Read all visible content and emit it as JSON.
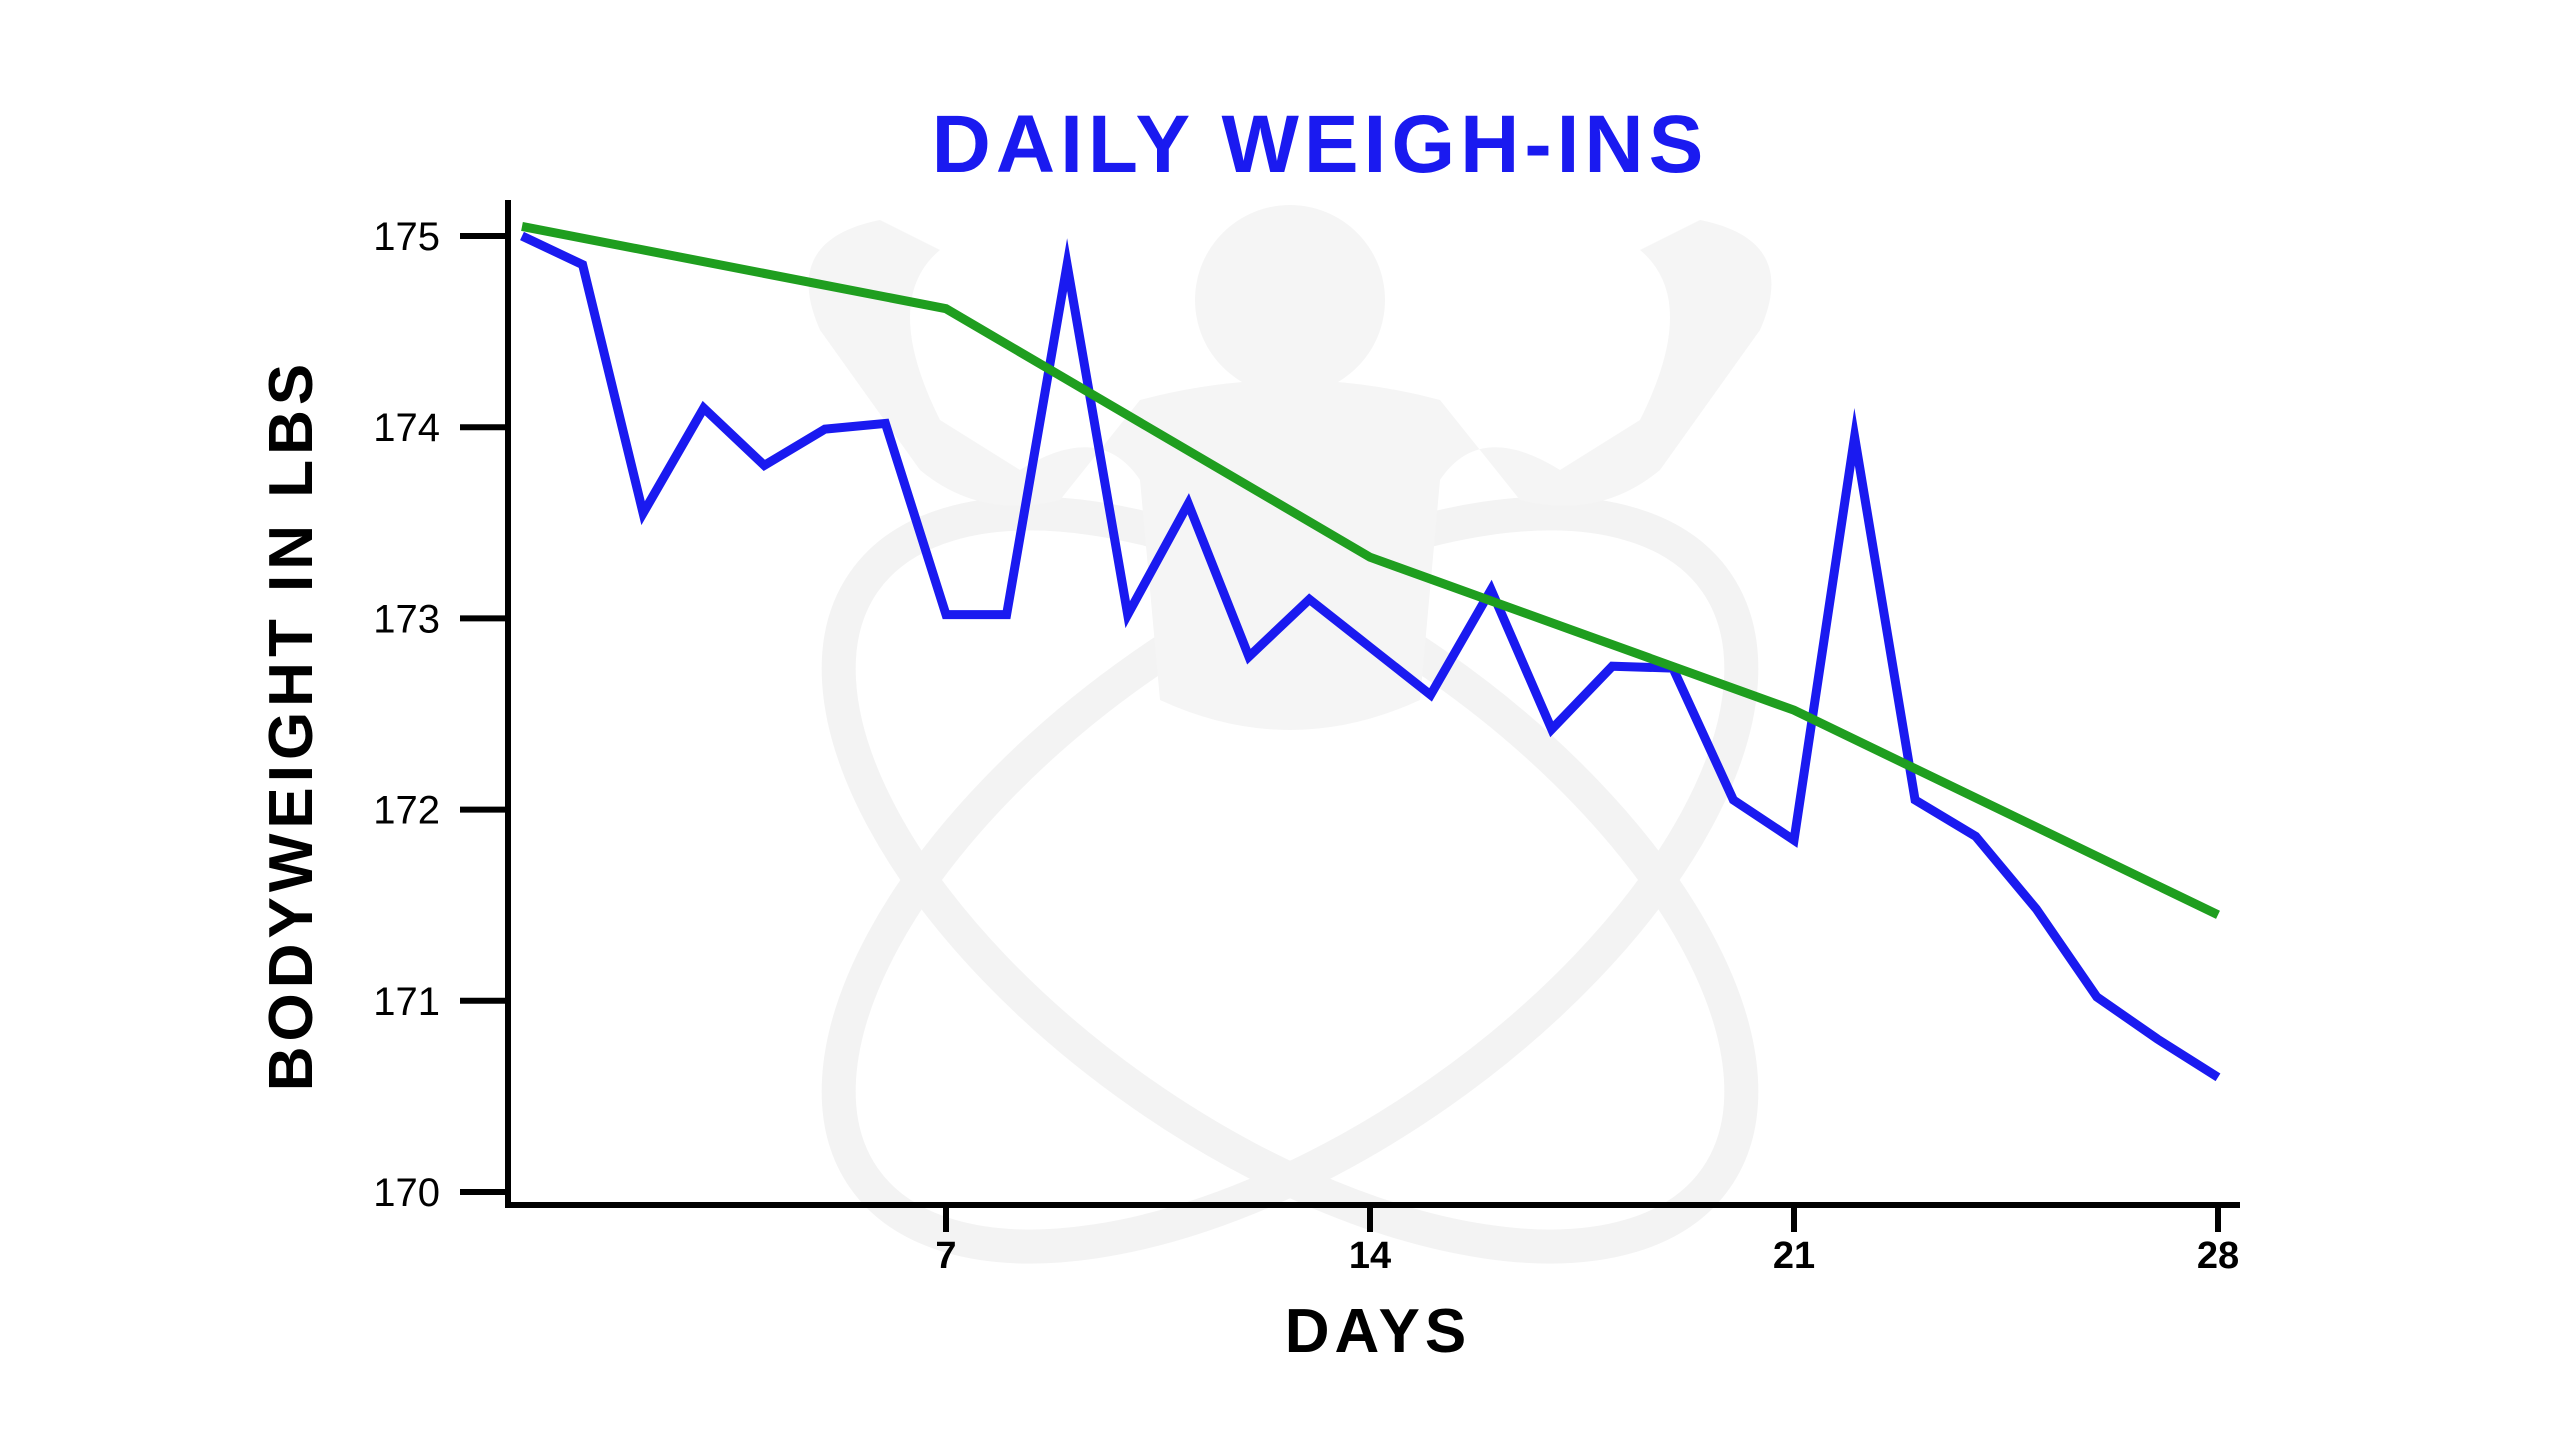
{
  "chart_data": {
    "type": "line",
    "title": "DAILY WEIGH-INS",
    "xlabel": "DAYS",
    "ylabel": "BODYWEIGHT IN LBS",
    "xlim": [
      0,
      28
    ],
    "ylim": [
      170,
      175
    ],
    "xticks": [
      7,
      14,
      21,
      28
    ],
    "yticks": [
      170,
      171,
      172,
      173,
      174,
      175
    ],
    "grid": false,
    "legend": "none",
    "colors": {
      "daily": "#1a1af0",
      "trend": "#1f9e1f",
      "title": "#1a1af0",
      "axis": "#000000",
      "watermark": "#f4f4f4"
    },
    "series": [
      {
        "key": "daily",
        "x": [
          0,
          1,
          2,
          3,
          4,
          5,
          6,
          7,
          8,
          9,
          10,
          11,
          12,
          13,
          14,
          15,
          16,
          17,
          18,
          19,
          20,
          21,
          22,
          23,
          24,
          25,
          26,
          27,
          28
        ],
        "values": [
          175.0,
          174.85,
          173.55,
          174.1,
          173.8,
          173.99,
          174.02,
          173.02,
          173.02,
          174.85,
          173.02,
          173.6,
          172.8,
          173.1,
          172.85,
          172.6,
          173.15,
          172.42,
          172.75,
          172.74,
          172.05,
          171.84,
          173.95,
          172.05,
          171.86,
          171.48,
          171.02,
          170.8,
          170.6
        ]
      },
      {
        "key": "trend",
        "x": [
          0,
          7,
          14,
          21,
          28
        ],
        "values": [
          175.05,
          174.62,
          173.32,
          172.52,
          171.45
        ]
      }
    ]
  }
}
